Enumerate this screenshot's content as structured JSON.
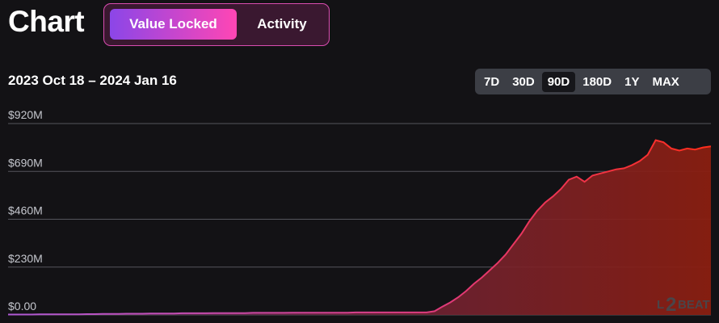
{
  "header": {
    "title": "Chart",
    "tabs": [
      {
        "label": "Value Locked",
        "active": true
      },
      {
        "label": "Activity",
        "active": false
      }
    ]
  },
  "date_range": "2023 Oct 18 – 2024 Jan 16",
  "range_options": [
    {
      "label": "7D",
      "active": false
    },
    {
      "label": "30D",
      "active": false
    },
    {
      "label": "90D",
      "active": true
    },
    {
      "label": "180D",
      "active": false
    },
    {
      "label": "1Y",
      "active": false
    },
    {
      "label": "MAX",
      "active": false
    }
  ],
  "watermark": {
    "prefix": "L",
    "digit": "2",
    "suffix": "BEAT"
  },
  "colors": {
    "accent_gradient_start": "#8b46e8",
    "accent_gradient_end": "#ff46b4",
    "line_start": "#b05ad6",
    "line_end": "#ff2d1a",
    "fill_start": "#5a2a6a",
    "fill_end": "#8a1e10"
  },
  "chart_data": {
    "type": "area",
    "title": "",
    "xlabel": "",
    "ylabel": "",
    "x_start": "2023-10-18",
    "x_end": "2024-01-16",
    "ylim": [
      0,
      920
    ],
    "y_unit": "$M",
    "yticks": [
      {
        "value": 0,
        "label": "$0.00"
      },
      {
        "value": 230,
        "label": "$230M"
      },
      {
        "value": 460,
        "label": "$460M"
      },
      {
        "value": 690,
        "label": "$690M"
      },
      {
        "value": 920,
        "label": "$920M"
      }
    ],
    "grid": true,
    "legend": "none",
    "series": [
      {
        "values": [
          2,
          2,
          2,
          2,
          3,
          3,
          3,
          3,
          3,
          3,
          4,
          4,
          5,
          5,
          5,
          6,
          6,
          6,
          7,
          7,
          7,
          7,
          8,
          8,
          8,
          8,
          9,
          9,
          9,
          9,
          9,
          10,
          10,
          10,
          10,
          10,
          11,
          11,
          11,
          11,
          11,
          11,
          11,
          11,
          12,
          12,
          12,
          12,
          12,
          12,
          12,
          12,
          12,
          12,
          18,
          40,
          60,
          85,
          115,
          150,
          180,
          215,
          250,
          290,
          340,
          390,
          450,
          500,
          540,
          570,
          605,
          650,
          665,
          640,
          670,
          680,
          690,
          700,
          705,
          720,
          740,
          770,
          840,
          830,
          800,
          790,
          800,
          795,
          805,
          810
        ]
      }
    ]
  }
}
